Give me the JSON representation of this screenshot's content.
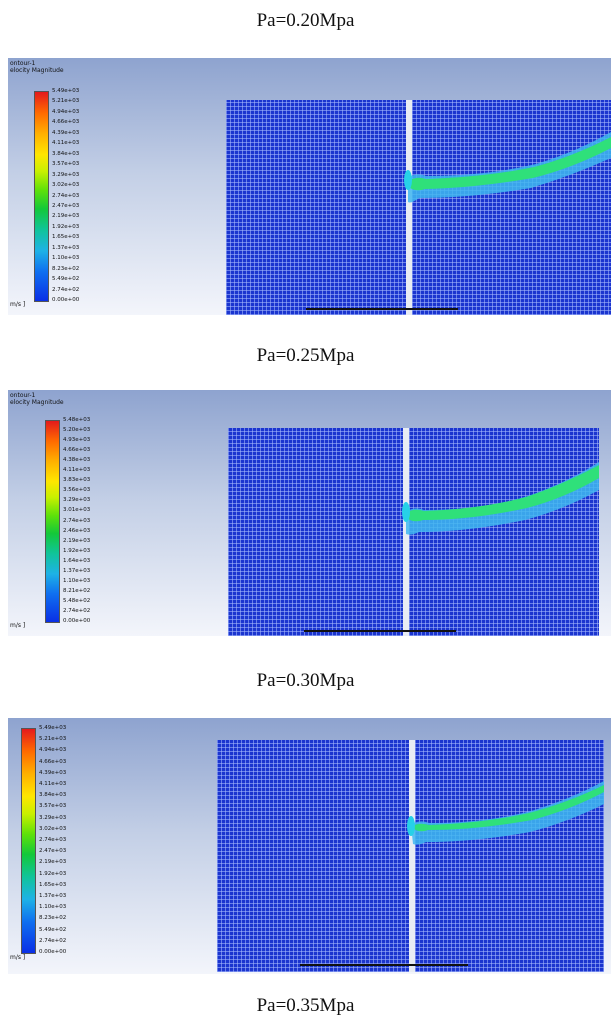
{
  "captions": [
    "Pa=0.20Mpa",
    "Pa=0.25Mpa",
    "Pa=0.30Mpa",
    "Pa=0.35Mpa"
  ],
  "contour_title": "ontour-1\nelocity Magnitude",
  "contour_title_2": "ontour-1\nelocity Magnitude",
  "unit_label": "m/s ]",
  "colorbar_1": [
    "5.49e+03",
    "5.21e+03",
    "4.94e+03",
    "4.66e+03",
    "4.39e+03",
    "4.11e+03",
    "3.84e+03",
    "3.57e+03",
    "3.29e+03",
    "3.02e+03",
    "2.74e+03",
    "2.47e+03",
    "2.19e+03",
    "1.92e+03",
    "1.65e+03",
    "1.37e+03",
    "1.10e+03",
    "8.23e+02",
    "5.49e+02",
    "2.74e+02",
    "0.00e+00"
  ],
  "colorbar_2": [
    "5.48e+03",
    "5.20e+03",
    "4.93e+03",
    "4.66e+03",
    "4.38e+03",
    "4.11e+03",
    "3.83e+03",
    "3.56e+03",
    "3.29e+03",
    "3.01e+03",
    "2.74e+03",
    "2.46e+03",
    "2.19e+03",
    "1.92e+03",
    "1.64e+03",
    "1.37e+03",
    "1.10e+03",
    "8.21e+02",
    "5.48e+02",
    "2.74e+02",
    "0.00e+00"
  ],
  "colorbar_3": [
    "5.49e+03",
    "5.21e+03",
    "4.94e+03",
    "4.66e+03",
    "4.39e+03",
    "4.11e+03",
    "3.84e+03",
    "3.57e+03",
    "3.29e+03",
    "3.02e+03",
    "2.74e+03",
    "2.47e+03",
    "2.19e+03",
    "1.92e+03",
    "1.65e+03",
    "1.37e+03",
    "1.10e+03",
    "8.23e+02",
    "5.49e+02",
    "2.74e+02",
    "0.00e+00"
  ],
  "colors": {
    "mesh": "#1b35cf",
    "jet_core": "#2fe07a",
    "jet_outer": "#3fb7f0"
  }
}
